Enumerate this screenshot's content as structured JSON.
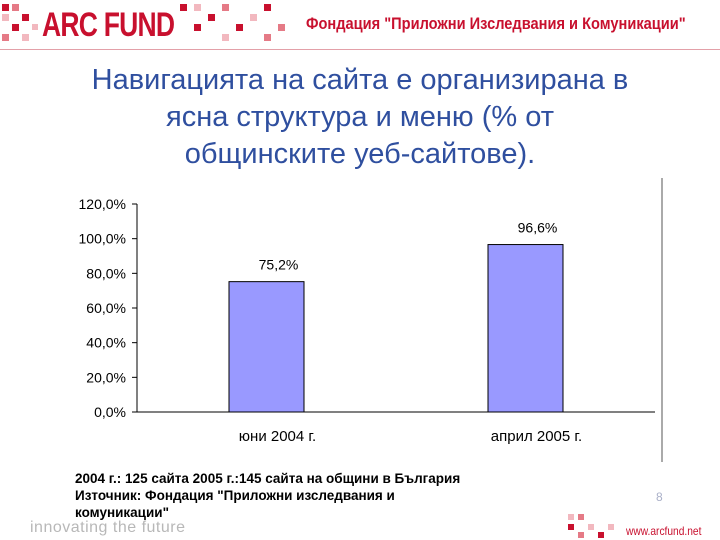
{
  "header": {
    "logo": "ARC FUND",
    "title": "Фондация \"Приложни Изследвания и Комуникации\""
  },
  "slide": {
    "title_line1": "Навигацията на сайта е организирана в",
    "title_line2": "ясна структура и меню (% от",
    "title_line3": "общинските уеб-сайтове).",
    "page_number": "8"
  },
  "chart_data": {
    "type": "bar",
    "categories": [
      "юни 2004 г.",
      "април 2005 г."
    ],
    "values": [
      75.2,
      96.6
    ],
    "data_labels": [
      "75,2%",
      "96,6%"
    ],
    "y_ticks": [
      "0,0%",
      "20,0%",
      "40,0%",
      "60,0%",
      "80,0%",
      "100,0%",
      "120,0%"
    ],
    "ylim": [
      0,
      120
    ],
    "bar_color": "#9999ff",
    "grid": false,
    "legend": "none"
  },
  "footnote": {
    "line1": "2004 г.: 125 сайта 2005 г.:145 сайта на общини в България",
    "line2": "Източник: Фондация \"Приложни изследвания и",
    "line3": "комуникации\""
  },
  "footer": {
    "tagline": "innovating the future",
    "url": "www.arcfund.net"
  },
  "colors": {
    "brand_red": "#c8102e",
    "title_blue": "#2f4f9f"
  }
}
